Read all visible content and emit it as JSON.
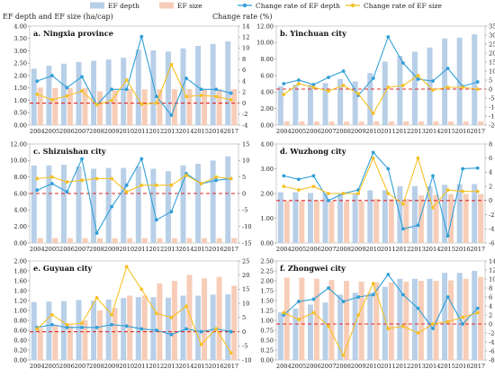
{
  "header": {
    "left_axis_label": "EF depth and EF size (ha/cap)",
    "right_axis_label": "Change rate (%)"
  },
  "legend": [
    {
      "label": "EF depth",
      "color": "#b8cfe8",
      "kind": "bar"
    },
    {
      "label": "EF size",
      "color": "#f7cdb8",
      "kind": "bar"
    },
    {
      "label": "Change rate of EF depth",
      "color": "#2f9fd8",
      "kind": "line"
    },
    {
      "label": "Change rate of EF size",
      "color": "#f5c125",
      "kind": "line"
    }
  ],
  "chart_data": [
    {
      "type": "bar",
      "title": "a. Ningxia province",
      "categories": [
        "2004",
        "2005",
        "2006",
        "2007",
        "2008",
        "2009",
        "2010",
        "2011",
        "2012",
        "2013",
        "2014",
        "2015",
        "2016",
        "2017"
      ],
      "ylim": [
        0,
        4.0
      ],
      "yticks": [
        0,
        0.5,
        1.0,
        1.5,
        2.0,
        2.5,
        3.0,
        3.5,
        4.0
      ],
      "ytick_labels": [
        "0.00",
        "0.50",
        "1.00",
        "1.50",
        "2.00",
        "2.50",
        "3.00",
        "3.50",
        "4.00"
      ],
      "y2lim": [
        -4,
        14
      ],
      "y2ticks": [
        -4,
        -2,
        0,
        2,
        4,
        6,
        8,
        10,
        12,
        14
      ],
      "ref_line": 0,
      "series": [
        {
          "name": "EF depth",
          "axis": "left",
          "values": [
            2.28,
            2.4,
            2.48,
            2.55,
            2.6,
            2.65,
            2.72,
            3.05,
            3.02,
            2.97,
            3.1,
            3.2,
            3.28,
            3.38
          ]
        },
        {
          "name": "EF size",
          "axis": "left",
          "values": [
            1.52,
            1.5,
            1.5,
            1.49,
            1.36,
            1.4,
            1.46,
            1.45,
            1.45,
            1.45,
            1.46,
            1.45,
            1.44,
            1.45
          ]
        },
        {
          "name": "Change rate of EF depth",
          "axis": "right",
          "values": [
            4.0,
            5.0,
            2.8,
            4.8,
            -0.3,
            2.5,
            2.5,
            12.1,
            1.2,
            -2.2,
            4.5,
            2.5,
            2.5,
            1.8
          ]
        },
        {
          "name": "Change rate of EF size",
          "axis": "right",
          "values": [
            1.6,
            0.6,
            1.3,
            2.2,
            -0.3,
            0.5,
            4.2,
            -0.2,
            0.0,
            7.0,
            1.2,
            1.4,
            1.2,
            0.6
          ]
        }
      ]
    },
    {
      "type": "bar",
      "title": "b. Yinchuan city",
      "categories": [
        "2004",
        "2005",
        "2006",
        "2007",
        "2008",
        "2009",
        "2010",
        "2011",
        "2012",
        "2013",
        "2014",
        "2015",
        "2016",
        "2017"
      ],
      "ylim": [
        0,
        12.0
      ],
      "yticks": [
        0,
        2,
        4,
        6,
        8,
        10,
        12
      ],
      "ytick_labels": [
        "0.00",
        "2.00",
        "4.00",
        "6.00",
        "8.00",
        "10.00",
        "12.00"
      ],
      "y2lim": [
        -20,
        35
      ],
      "y2ticks": [
        -20,
        -15,
        -10,
        -5,
        0,
        5,
        10,
        15,
        20,
        25,
        30,
        35
      ],
      "ref_line": 0,
      "series": [
        {
          "name": "EF depth",
          "axis": "left",
          "values": [
            4.7,
            4.9,
            4.9,
            5.1,
            5.6,
            5.3,
            6.3,
            7.7,
            8.4,
            8.9,
            9.4,
            10.5,
            10.6,
            11.0
          ]
        },
        {
          "name": "EF size",
          "axis": "left",
          "values": [
            0.45,
            0.45,
            0.45,
            0.45,
            0.42,
            0.42,
            0.45,
            0.44,
            0.44,
            0.45,
            0.45,
            0.45,
            0.44,
            0.44
          ]
        },
        {
          "name": "Change rate of EF depth",
          "axis": "right",
          "values": [
            3.0,
            5.0,
            2.5,
            6.5,
            10.0,
            -3.5,
            6.0,
            29.0,
            14.5,
            5.5,
            4.5,
            11.5,
            1.5,
            4.0
          ]
        },
        {
          "name": "Change rate of EF size",
          "axis": "right",
          "values": [
            -3.0,
            3.0,
            1.0,
            -1.0,
            2.0,
            -2.5,
            -13.5,
            1.0,
            2.0,
            7.5,
            -0.5,
            1.0,
            1.0,
            0.0
          ]
        }
      ]
    },
    {
      "type": "bar",
      "title": "c. Shizuishan city",
      "categories": [
        "2004",
        "2005",
        "2006",
        "2007",
        "2008",
        "2009",
        "2010",
        "2011",
        "2012",
        "2013",
        "2014",
        "2015",
        "2016",
        "2017"
      ],
      "ylim": [
        0,
        12.0
      ],
      "yticks": [
        0,
        2,
        4,
        6,
        8,
        10,
        12
      ],
      "ytick_labels": [
        "0.00",
        "2.00",
        "4.00",
        "6.00",
        "8.00",
        "10.00",
        "12.00"
      ],
      "y2lim": [
        -15,
        15
      ],
      "y2ticks": [
        -15,
        -10,
        -5,
        0,
        5,
        10,
        15
      ],
      "ref_line": 0,
      "series": [
        {
          "name": "EF depth",
          "axis": "left",
          "values": [
            9.4,
            9.4,
            9.5,
            9.3,
            9.0,
            9.1,
            9.1,
            9.3,
            9.0,
            8.7,
            9.4,
            9.6,
            10.0,
            10.5
          ]
        },
        {
          "name": "EF size",
          "axis": "left",
          "values": [
            0.6,
            0.6,
            0.6,
            0.58,
            0.58,
            0.58,
            0.58,
            0.58,
            0.58,
            0.58,
            0.58,
            0.58,
            0.58,
            0.58
          ]
        },
        {
          "name": "Change rate of EF depth",
          "axis": "right",
          "values": [
            1.0,
            3.0,
            0.5,
            10.5,
            -12.0,
            -4.0,
            2.5,
            10.5,
            -8.0,
            -5.5,
            6.0,
            3.0,
            4.0,
            4.5
          ]
        },
        {
          "name": "Change rate of EF size",
          "axis": "right",
          "values": [
            4.5,
            5.0,
            3.5,
            4.0,
            4.5,
            4.5,
            0.5,
            2.5,
            2.5,
            2.5,
            5.5,
            3.0,
            5.0,
            4.5
          ]
        }
      ]
    },
    {
      "type": "bar",
      "title": "d. Wuzhong city",
      "categories": [
        "2004",
        "2005",
        "2006",
        "2007",
        "2008",
        "2009",
        "2010",
        "2011",
        "2012",
        "2013",
        "2014",
        "2015",
        "2016",
        "2017"
      ],
      "ylim": [
        0,
        4.0
      ],
      "yticks": [
        0,
        1,
        2,
        3,
        4
      ],
      "ytick_labels": [
        "0.00",
        "1.00",
        "2.00",
        "3.00",
        "4.00"
      ],
      "y2lim": [
        -6,
        8
      ],
      "y2ticks": [
        -6,
        -4,
        -2,
        0,
        2,
        4,
        6,
        8
      ],
      "ref_line": 0,
      "series": [
        {
          "name": "EF depth",
          "axis": "left",
          "values": [
            2.05,
            2.05,
            2.02,
            2.01,
            2.0,
            1.98,
            2.13,
            2.13,
            2.29,
            2.3,
            2.29,
            2.35,
            2.38,
            2.38
          ]
        },
        {
          "name": "EF size",
          "axis": "left",
          "values": [
            1.7,
            1.7,
            1.72,
            1.7,
            1.68,
            1.68,
            1.78,
            1.78,
            1.78,
            1.93,
            1.95,
            1.98,
            1.98,
            1.98
          ]
        },
        {
          "name": "Change rate of EF depth",
          "axis": "right",
          "values": [
            3.5,
            3.0,
            3.5,
            0.0,
            1.0,
            1.5,
            6.8,
            4.5,
            -4.0,
            -3.5,
            3.5,
            -5.0,
            4.5,
            4.6
          ]
        },
        {
          "name": "Change rate of EF size",
          "axis": "right",
          "values": [
            2.0,
            1.5,
            2.0,
            1.0,
            1.0,
            1.0,
            6.0,
            1.0,
            -0.5,
            6.0,
            -1.0,
            1.5,
            1.3,
            1.3
          ]
        }
      ]
    },
    {
      "type": "bar",
      "title": "e. Guyuan city",
      "categories": [
        "2004",
        "2005",
        "2006",
        "2007",
        "2008",
        "2009",
        "2010",
        "2011",
        "2012",
        "2013",
        "2014",
        "2015",
        "2016",
        "2017"
      ],
      "ylim": [
        0,
        2.0
      ],
      "yticks": [
        0,
        0.2,
        0.4,
        0.6,
        0.8,
        1.0,
        1.2,
        1.4,
        1.6,
        1.8,
        2.0
      ],
      "ytick_labels": [
        "0.00",
        "0.20",
        "0.40",
        "0.60",
        "0.80",
        "1.00",
        "1.20",
        "1.40",
        "1.60",
        "1.80",
        "2.00"
      ],
      "y2lim": [
        -10,
        25
      ],
      "y2ticks": [
        -10,
        -5,
        0,
        5,
        10,
        15,
        20,
        25
      ],
      "ref_line": 0,
      "series": [
        {
          "name": "EF depth",
          "axis": "left",
          "values": [
            1.17,
            1.18,
            1.19,
            1.21,
            1.2,
            1.22,
            1.25,
            1.27,
            1.27,
            1.26,
            1.3,
            1.3,
            1.32,
            1.33
          ]
        },
        {
          "name": "EF size",
          "axis": "left",
          "values": [
            0.65,
            0.7,
            0.7,
            0.8,
            1.0,
            1.05,
            1.3,
            1.3,
            1.55,
            1.6,
            1.72,
            1.65,
            1.68,
            1.5
          ]
        },
        {
          "name": "Change rate of EF depth",
          "axis": "right",
          "values": [
            1.5,
            2.5,
            1.5,
            1.5,
            1.5,
            2.5,
            2.0,
            1.0,
            0.5,
            -1.0,
            1.0,
            0.0,
            1.0,
            0.0
          ]
        },
        {
          "name": "Change rate of EF size",
          "axis": "right",
          "values": [
            1.0,
            6.0,
            2.5,
            3.0,
            12.0,
            6.0,
            23.0,
            15.0,
            6.5,
            5.0,
            9.0,
            -4.5,
            1.0,
            -7.5
          ]
        }
      ]
    },
    {
      "type": "bar",
      "title": "f. Zhongwei city",
      "categories": [
        "2004",
        "2005",
        "2006",
        "2007",
        "2008",
        "2009",
        "2010",
        "2011",
        "2012",
        "2013",
        "2014",
        "2015",
        "2016",
        "2017"
      ],
      "ylim": [
        0,
        2.5
      ],
      "yticks": [
        0,
        0.25,
        0.5,
        0.75,
        1.0,
        1.25,
        1.5,
        1.75,
        2.0,
        2.25,
        2.5
      ],
      "ytick_labels": [
        "0.00",
        "0.25",
        "0.50",
        "0.75",
        "1.00",
        "1.25",
        "1.50",
        "1.75",
        "2.00",
        "2.25",
        "2.50"
      ],
      "y2lim": [
        -8,
        14
      ],
      "y2ticks": [
        -8,
        -6,
        -4,
        -2,
        0,
        2,
        4,
        6,
        8,
        10,
        12,
        14
      ],
      "ref_line": 0,
      "series": [
        {
          "name": "EF depth",
          "axis": "left",
          "values": [
            1.2,
            1.3,
            1.4,
            1.45,
            1.65,
            1.7,
            1.7,
            1.85,
            2.05,
            2.05,
            2.05,
            2.2,
            2.2,
            2.25
          ]
        },
        {
          "name": "EF size",
          "axis": "left",
          "values": [
            2.08,
            2.08,
            2.05,
            2.02,
            2.0,
            1.98,
            1.96,
            1.96,
            1.98,
            2.0,
            2.0,
            2.01,
            2.05,
            2.1
          ]
        },
        {
          "name": "Change rate of EF depth",
          "axis": "right",
          "values": [
            2.0,
            5.0,
            5.5,
            8.0,
            5.0,
            6.0,
            6.5,
            11.0,
            6.5,
            3.5,
            -1.0,
            6.0,
            0.0,
            3.5
          ]
        },
        {
          "name": "Change rate of EF size",
          "axis": "right",
          "values": [
            2.5,
            1.0,
            2.5,
            -0.5,
            -7.0,
            2.0,
            9.0,
            -1.0,
            -0.5,
            -2.0,
            0.0,
            0.5,
            1.5,
            2.5
          ]
        }
      ]
    }
  ]
}
